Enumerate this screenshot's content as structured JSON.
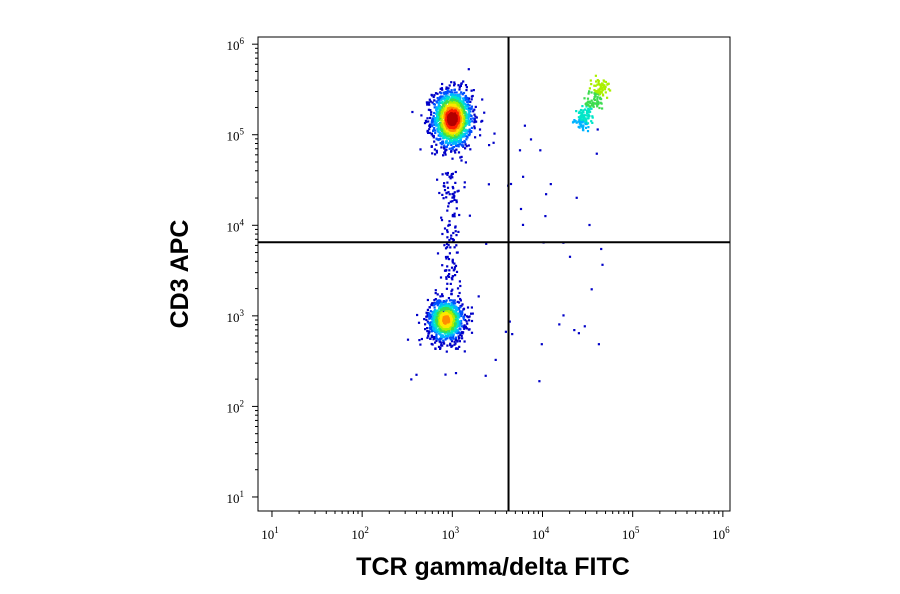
{
  "chart_data": {
    "type": "scatter",
    "subtype": "flow-cytometry-density-dot-plot",
    "xlabel": "TCR gamma/delta FITC",
    "ylabel": "CD3 APC",
    "x_scale": "log",
    "y_scale": "log",
    "xlim": [
      7,
      1200000
    ],
    "ylim": [
      7,
      1200000
    ],
    "x_ticks": [
      {
        "base": "10",
        "exp": "1",
        "value": 10
      },
      {
        "base": "10",
        "exp": "2",
        "value": 100
      },
      {
        "base": "10",
        "exp": "3",
        "value": 1000
      },
      {
        "base": "10",
        "exp": "4",
        "value": 10000
      },
      {
        "base": "10",
        "exp": "5",
        "value": 100000
      },
      {
        "base": "10",
        "exp": "6",
        "value": 1000000
      }
    ],
    "y_ticks": [
      {
        "base": "10",
        "exp": "1",
        "value": 10
      },
      {
        "base": "10",
        "exp": "2",
        "value": 100
      },
      {
        "base": "10",
        "exp": "3",
        "value": 1000
      },
      {
        "base": "10",
        "exp": "4",
        "value": 10000
      },
      {
        "base": "10",
        "exp": "5",
        "value": 100000
      },
      {
        "base": "10",
        "exp": "6",
        "value": 1000000
      }
    ],
    "quadrant_gates": {
      "x": 4200,
      "y": 6500
    },
    "populations": [
      {
        "center": [
          1000,
          150000
        ],
        "spread": [
          0.11,
          0.16
        ],
        "count": 1400
      },
      {
        "center": [
          850,
          900
        ],
        "spread": [
          0.1,
          0.12
        ],
        "count": 1000
      },
      {
        "center_start": [
          25000,
          120000
        ],
        "center_end": [
          50000,
          400000
        ],
        "spread": 0.04,
        "count": 220
      }
    ],
    "grid": false,
    "colormap": [
      "#0000c8",
      "#0050ff",
      "#00b4ff",
      "#00e6c8",
      "#3cdc50",
      "#aaf000",
      "#ffe600",
      "#ff8c00",
      "#ff1e00",
      "#b40000"
    ]
  }
}
